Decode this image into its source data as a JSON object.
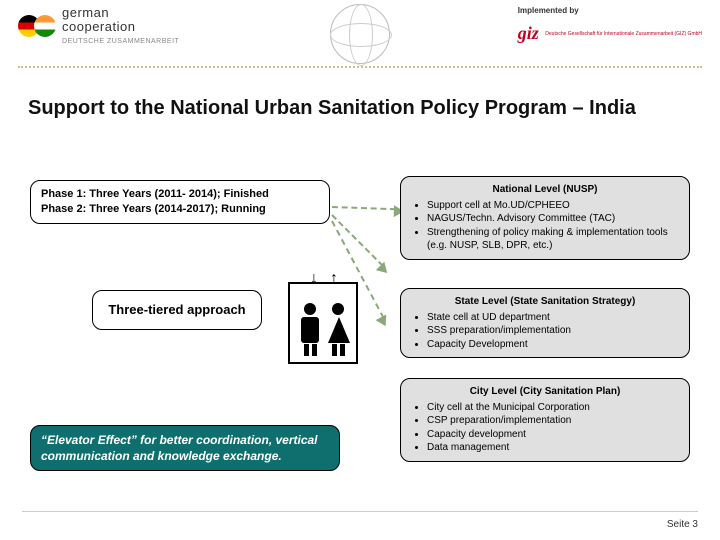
{
  "header": {
    "coop_text": "german",
    "coop_word": "cooperation",
    "coop_sub": "DEUTSCHE ZUSAMMENARBEIT",
    "implemented_label": "Implemented by",
    "giz_mark": "giz",
    "giz_sub": "Deutsche Gesellschaft für Internationale Zusammenarbeit (GIZ) GmbH"
  },
  "title": "Support to the National Urban Sanitation Policy Program – India",
  "phase": {
    "line1": "Phase 1: Three Years (2011- 2014); Finished",
    "line2": "Phase 2: Three Years (2014-2017);  Running"
  },
  "three_tier": "Three-tiered approach",
  "elevator": "“Elevator Effect” for better coordination, vertical communication and knowledge exchange.",
  "national": {
    "heading": "National Level (NUSP)",
    "b1": "Support cell at Mo.UD/CPHEEO",
    "b2": "NAGUS/Techn. Advisory Committee (TAC)",
    "b3": "Strengthening of policy making & implementation tools (e.g. NUSP, SLB, DPR, etc.)"
  },
  "state": {
    "heading": "State Level (State Sanitation Strategy)",
    "b1": "State cell at UD department",
    "b2": "SSS preparation/implementation",
    "b3": "Capacity Development"
  },
  "city": {
    "heading": "City Level (City Sanitation Plan)",
    "b1": "City cell at the Municipal Corporation",
    "b2": "CSP preparation/implementation",
    "b3": "Capacity development",
    "b4": "Data management"
  },
  "footer": "Seite 3",
  "colors": {
    "box_grey": "#e0e0e0",
    "teal": "#0f6e6e",
    "arrow": "#8aa87a",
    "dot_rule": "#c8c097",
    "giz_red": "#c00020"
  }
}
